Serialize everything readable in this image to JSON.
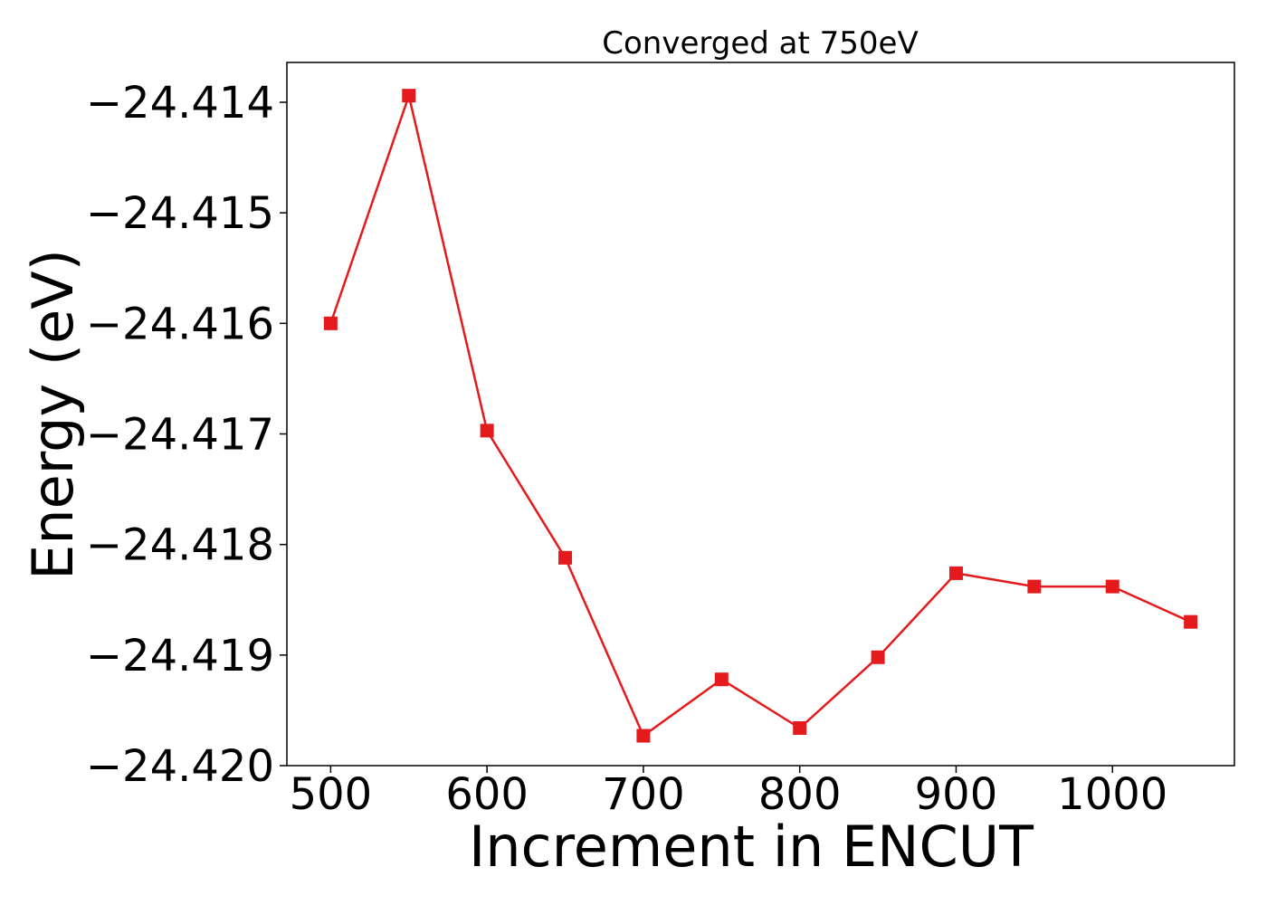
{
  "chart_data": {
    "type": "line",
    "title": "Converged at 750eV",
    "xlabel": "Increment in ENCUT",
    "ylabel": "Energy (eV)",
    "xlim": [
      472,
      1078
    ],
    "ylim": [
      -24.42,
      -24.41364
    ],
    "grid": false,
    "legend": "none",
    "x_ticks": [
      500,
      600,
      700,
      800,
      900,
      1000
    ],
    "x_tick_labels": [
      "500",
      "600",
      "700",
      "800",
      "900",
      "1000"
    ],
    "y_ticks": [
      -24.414,
      -24.415,
      -24.416,
      -24.417,
      -24.418,
      -24.419,
      -24.42
    ],
    "y_tick_labels": [
      "−24.414",
      "−24.415",
      "−24.416",
      "−24.417",
      "−24.418",
      "−24.419",
      "−24.420"
    ],
    "series": [
      {
        "color": "#e41a1c",
        "marker": "square",
        "x": [
          500,
          550,
          600,
          650,
          700,
          750,
          800,
          850,
          900,
          950,
          1000,
          1050
        ],
        "y": [
          -24.416,
          -24.41394,
          -24.41697,
          -24.41812,
          -24.41973,
          -24.41922,
          -24.41966,
          -24.41902,
          -24.41826,
          -24.41838,
          -24.41838,
          -24.4187
        ]
      }
    ]
  }
}
